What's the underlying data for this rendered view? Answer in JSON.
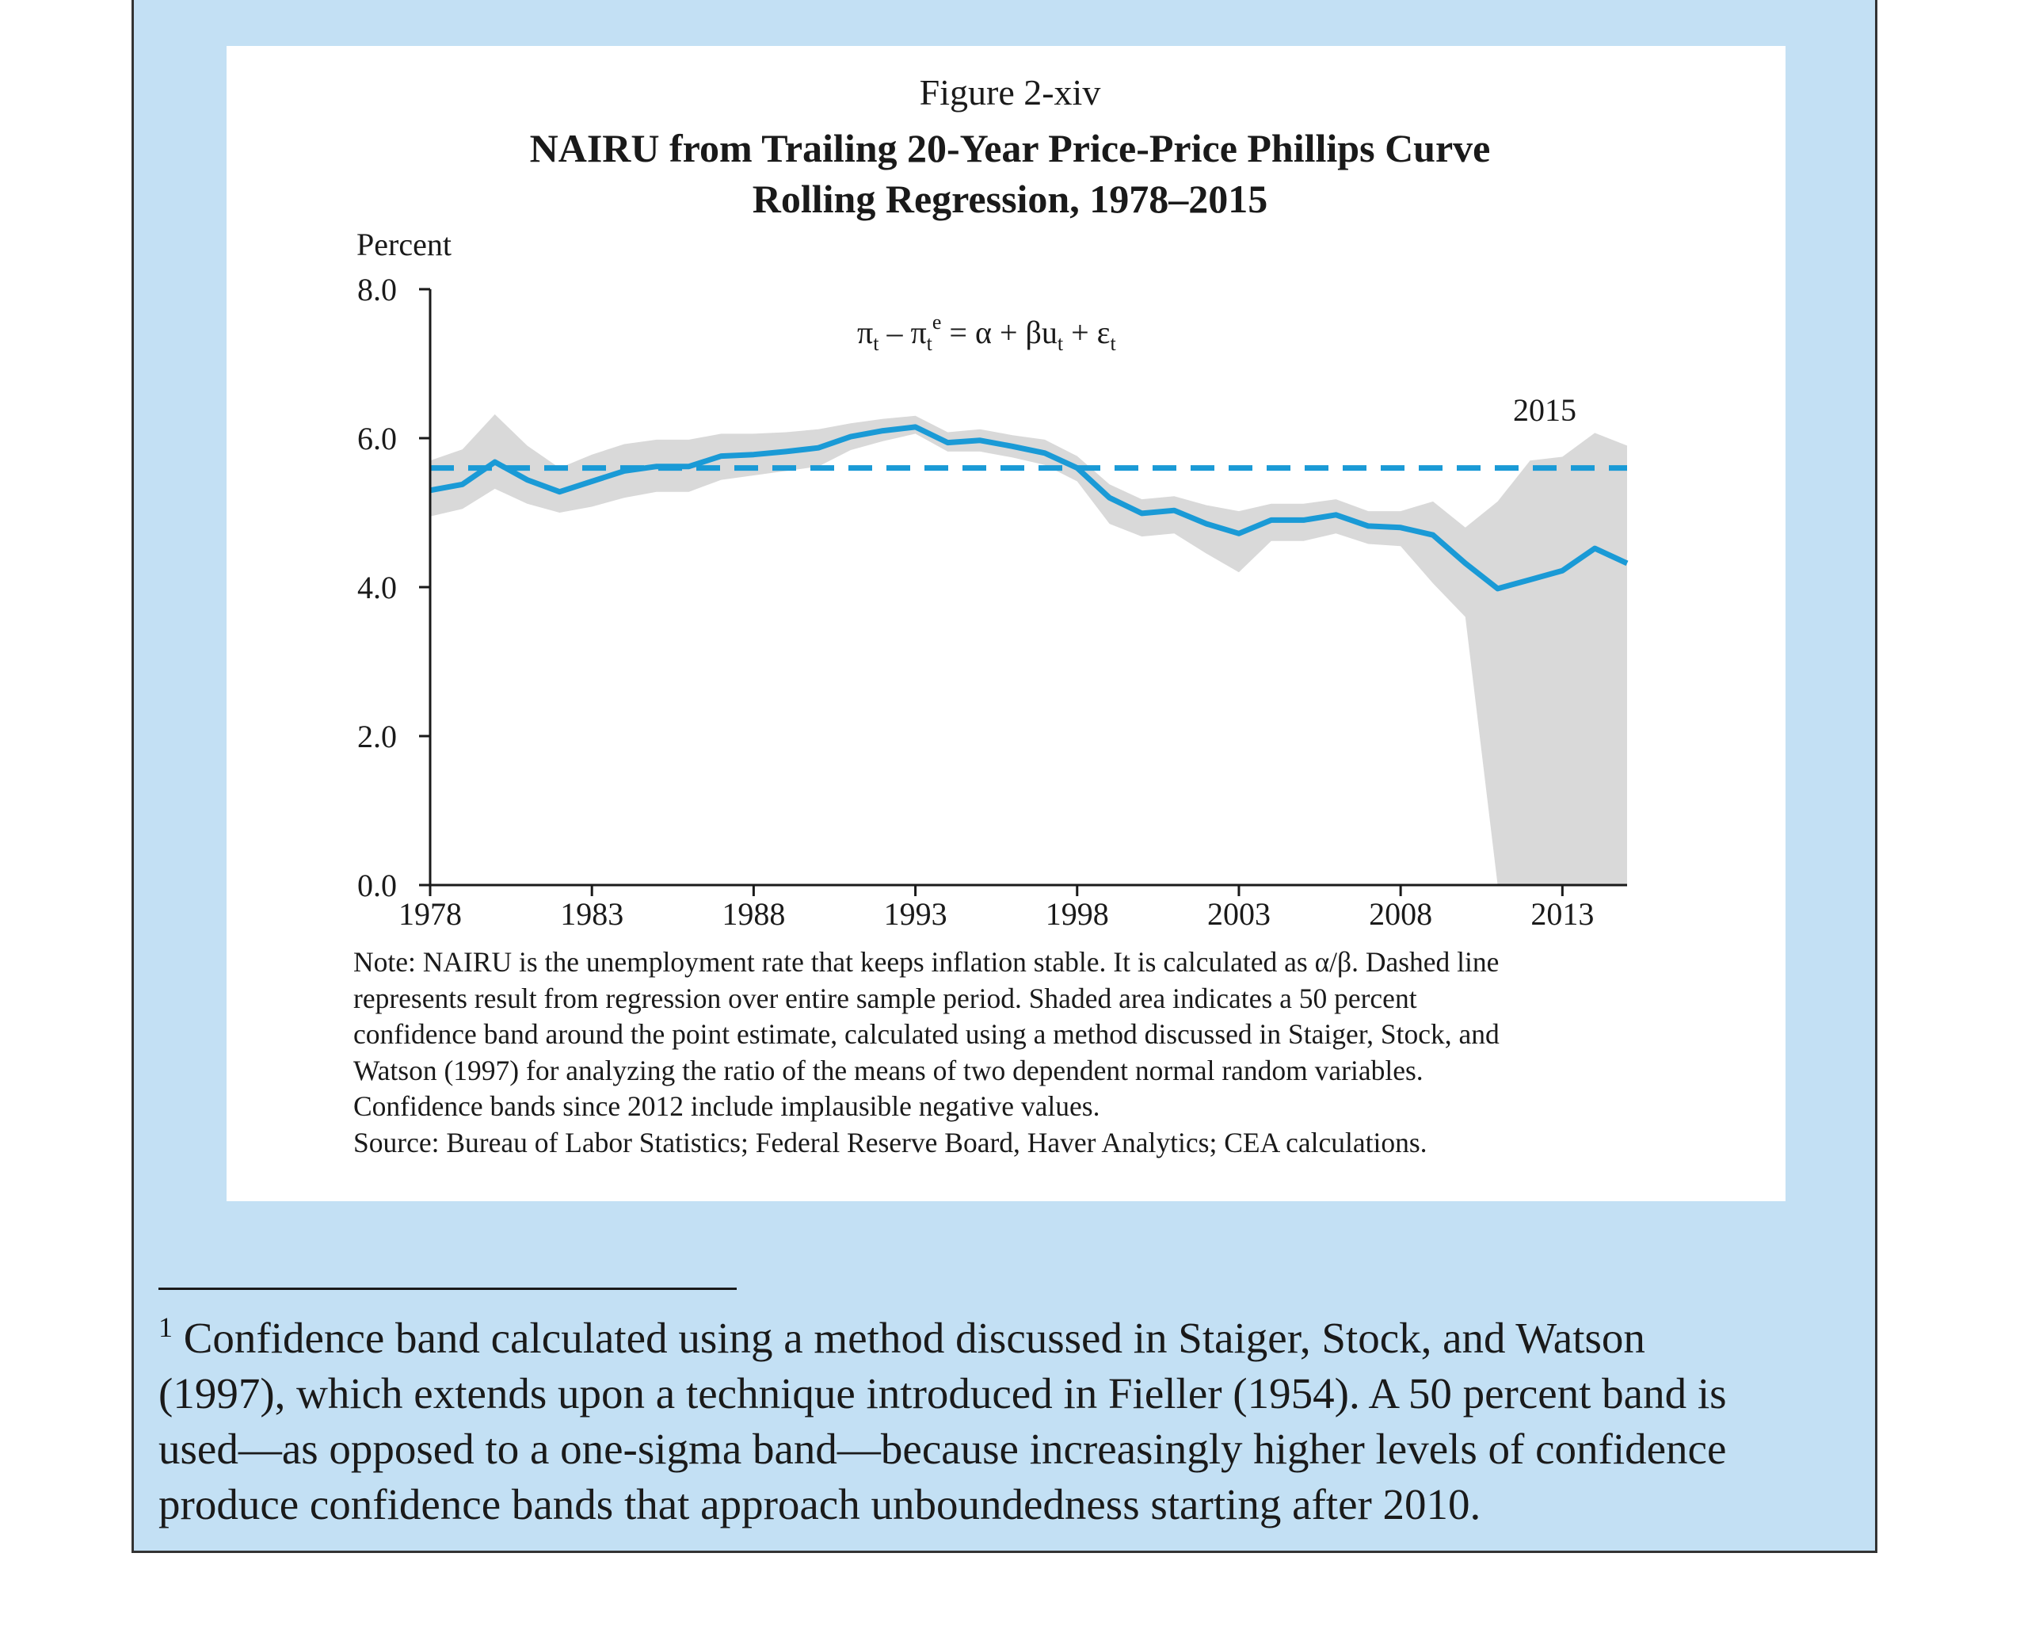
{
  "figure": {
    "label": "Figure 2-xiv",
    "title_line1": "NAIRU from Trailing 20-Year Price-Price Phillips Curve",
    "title_line2": "Rolling Regression, 1978–2015",
    "equation": {
      "main": "π",
      "minus": "– π",
      "rhs": "= α + βu",
      "tail": "+ ε",
      "sub_t": "t",
      "sup_e": "e"
    },
    "annotation": "2015"
  },
  "chart_data": {
    "type": "line",
    "ylabel": "Percent",
    "ylim": [
      0,
      8
    ],
    "yticks": [
      "0.0",
      "2.0",
      "4.0",
      "6.0",
      "8.0"
    ],
    "xlim": [
      1978,
      2015
    ],
    "xticks": [
      "1978",
      "1983",
      "1988",
      "1993",
      "1998",
      "2003",
      "2008",
      "2013"
    ],
    "series": [
      {
        "style": "solid",
        "color": "#1a9ad6",
        "x": [
          1978,
          1979,
          1980,
          1981,
          1982,
          1983,
          1984,
          1985,
          1986,
          1987,
          1988,
          1989,
          1990,
          1991,
          1992,
          1993,
          1994,
          1995,
          1996,
          1997,
          1998,
          1999,
          2000,
          2001,
          2002,
          2003,
          2004,
          2005,
          2006,
          2007,
          2008,
          2009,
          2010,
          2011,
          2012,
          2013,
          2014,
          2015
        ],
        "y": [
          5.3,
          5.38,
          5.68,
          5.44,
          5.28,
          5.42,
          5.56,
          5.62,
          5.62,
          5.76,
          5.78,
          5.82,
          5.87,
          6.02,
          6.1,
          6.15,
          5.94,
          5.97,
          5.89,
          5.8,
          5.6,
          5.2,
          4.99,
          5.03,
          4.85,
          4.72,
          4.9,
          4.9,
          4.97,
          4.82,
          4.8,
          4.7,
          4.32,
          3.98,
          4.1,
          4.22,
          4.52,
          4.32
        ]
      },
      {
        "style": "dashed",
        "color": "#1a9ad6",
        "x": [
          1978,
          2015
        ],
        "y": [
          5.6,
          5.6
        ]
      }
    ],
    "band": {
      "color": "#d9d9d9",
      "x": [
        1978,
        1979,
        1980,
        1981,
        1982,
        1983,
        1984,
        1985,
        1986,
        1987,
        1988,
        1989,
        1990,
        1991,
        1992,
        1993,
        1994,
        1995,
        1996,
        1997,
        1998,
        1999,
        2000,
        2001,
        2002,
        2003,
        2004,
        2005,
        2006,
        2007,
        2008,
        2009,
        2010,
        2011,
        2012,
        2013,
        2014,
        2015
      ],
      "upper": [
        5.7,
        5.85,
        6.32,
        5.9,
        5.6,
        5.78,
        5.92,
        5.98,
        5.98,
        6.06,
        6.06,
        6.08,
        6.12,
        6.2,
        6.26,
        6.3,
        6.08,
        6.12,
        6.04,
        5.98,
        5.76,
        5.38,
        5.18,
        5.22,
        5.1,
        5.02,
        5.12,
        5.12,
        5.18,
        5.02,
        5.02,
        5.15,
        4.8,
        5.15,
        5.7,
        5.75,
        6.07,
        5.9
      ],
      "lower": [
        4.95,
        5.05,
        5.32,
        5.12,
        5.0,
        5.08,
        5.2,
        5.28,
        5.28,
        5.44,
        5.5,
        5.56,
        5.62,
        5.84,
        5.96,
        6.06,
        5.82,
        5.82,
        5.74,
        5.64,
        5.42,
        4.85,
        4.68,
        4.72,
        4.45,
        4.2,
        4.62,
        4.62,
        4.72,
        4.58,
        4.55,
        4.05,
        3.6,
        0.0,
        0.0,
        0.0,
        0.0,
        0.0
      ]
    }
  },
  "note_lines": [
    "Note: NAIRU is the unemployment rate that keeps inflation stable. It is calculated as α/β. Dashed line",
    "represents result from regression over entire sample period. Shaded area indicates a 50 percent",
    "confidence band around the point estimate, calculated using a method discussed in Staiger, Stock, and",
    "Watson (1997) for analyzing the ratio of the means of two dependent normal random variables.",
    "Confidence bands since 2012 include implausible negative values.",
    "Source: Bureau of Labor Statistics; Federal Reserve Board, Haver Analytics; CEA calculations."
  ],
  "footnote": {
    "marker": "1",
    "lines": [
      "Confidence band calculated using a method discussed in Staiger, Stock, and Watson",
      "(1997), which extends upon a technique introduced in Fieller (1954). A 50 percent band is",
      "used—as opposed to a one-sigma band—because increasingly higher levels of confidence",
      "produce confidence bands that approach unboundedness starting after 2010."
    ]
  }
}
